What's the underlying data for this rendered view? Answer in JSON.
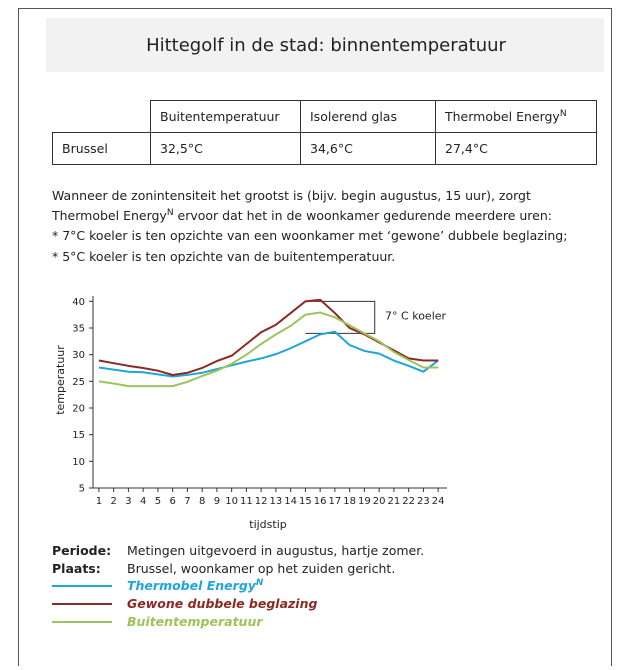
{
  "header": {
    "title": "Hittegolf in de stad: binnentemperatuur"
  },
  "table": {
    "columns": [
      "Buitentemperatuur",
      "Isolerend glas",
      {
        "text": "Thermobel Energy",
        "sup": "N"
      }
    ],
    "rows": [
      [
        "Brussel",
        "32,5°C",
        "34,6°C",
        "27,4°C"
      ]
    ]
  },
  "paragraph": {
    "lines": [
      "Wanneer de zonintensiteit het grootst is (bijv. begin augustus, 15 uur), zorgt",
      {
        "before": "Thermobel Energy",
        "sup": "N",
        "after": " ervoor dat het in de woonkamer gedurende meerdere uren:"
      },
      "* 7°C koeler is ten opzichte van een woonkamer met ‘gewone’ dubbele beglazing;",
      "* 5°C koeler is ten opzichte van de buitentemperatuur."
    ]
  },
  "chart_data": {
    "type": "line",
    "y_label": "temperatuur",
    "x_label": "tijdstip",
    "annotation": "7° C koeler",
    "x": [
      1,
      2,
      3,
      4,
      5,
      6,
      7,
      8,
      9,
      10,
      11,
      12,
      13,
      14,
      15,
      16,
      17,
      18,
      19,
      20,
      21,
      22,
      23,
      24
    ],
    "xlim": [
      0.6,
      24.6
    ],
    "xticks": [
      1,
      2,
      3,
      4,
      5,
      6,
      7,
      8,
      9,
      10,
      11,
      12,
      13,
      14,
      15,
      16,
      17,
      18,
      19,
      20,
      21,
      22,
      23,
      24
    ],
    "ylim": [
      5,
      41
    ],
    "yticks": [
      5,
      10,
      15,
      20,
      25,
      30,
      35,
      40
    ],
    "series": [
      {
        "name": "Thermobel Energy",
        "name_sup": "N",
        "color": "#1ea5dc",
        "values": [
          27.6,
          27.2,
          26.8,
          26.7,
          26.3,
          25.9,
          26.2,
          26.6,
          27.3,
          28.0,
          28.7,
          29.3,
          30.1,
          31.2,
          32.5,
          33.8,
          34.3,
          31.8,
          30.7,
          30.2,
          28.9,
          27.9,
          26.8,
          28.9
        ]
      },
      {
        "name": "Gewone dubbele beglazing",
        "color": "#8b2a23",
        "values": [
          28.9,
          28.4,
          27.9,
          27.5,
          27.0,
          26.2,
          26.6,
          27.5,
          28.8,
          29.8,
          32.0,
          34.2,
          35.6,
          37.8,
          40.0,
          40.3,
          37.8,
          35.0,
          33.8,
          32.3,
          30.8,
          29.3,
          28.9,
          28.9
        ]
      },
      {
        "name": "Buitentemperatuur",
        "color": "#9dc45a",
        "values": [
          25.0,
          24.6,
          24.1,
          24.1,
          24.1,
          24.1,
          24.9,
          26.0,
          27.0,
          28.3,
          30.0,
          32.0,
          33.8,
          35.4,
          37.5,
          37.9,
          37.0,
          35.5,
          34.0,
          32.5,
          30.5,
          29.0,
          27.6,
          27.6
        ]
      }
    ]
  },
  "notes": [
    {
      "label": "Periode:",
      "text": "Metingen uitgevoerd in augustus, hartje zomer."
    },
    {
      "label": "Plaats:",
      "text": "Brussel, woonkamer op het zuiden gericht."
    }
  ]
}
